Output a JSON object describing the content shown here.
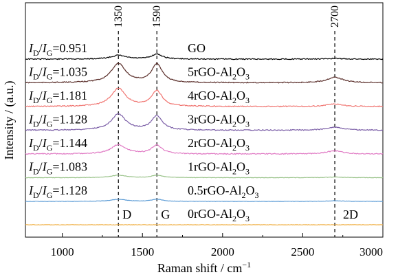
{
  "chart_data": {
    "type": "line",
    "xlabel_main": "Raman shift / cm",
    "xlabel_sup": "−1",
    "ylabel": "Intensity / (a.u.)",
    "xlim": [
      770,
      3000
    ],
    "xticks": [
      {
        "v": 1000,
        "label": "1000"
      },
      {
        "v": 1500,
        "label": "1500"
      },
      {
        "v": 2000,
        "label": "2000"
      },
      {
        "v": 2500,
        "label": "2500"
      },
      {
        "v": 3000,
        "label": "3000"
      }
    ],
    "ref_lines": [
      {
        "x": 1350,
        "top_label": "1350",
        "bottom_label": "D"
      },
      {
        "x": 1590,
        "top_label": "1590",
        "bottom_label": "G"
      },
      {
        "x": 2700,
        "top_label": "2700",
        "bottom_label": "2D"
      }
    ],
    "series": [
      {
        "name": "GO",
        "color": "#000000",
        "ratio": "0.951",
        "d": 0.12,
        "g": 0.16,
        "d2": 0.02,
        "base": 0
      },
      {
        "name": "5rGO-Al2O3",
        "display": "5rGO-Al",
        "color": "#5a2e2a",
        "ratio": "1.035",
        "d": 0.62,
        "g": 0.6,
        "d2": 0.18,
        "base": 1
      },
      {
        "name": "4rGO-Al2O3",
        "display": "4rGO-Al",
        "color": "#f07470",
        "ratio": "1.181",
        "d": 0.58,
        "g": 0.5,
        "d2": 0.08,
        "base": 2
      },
      {
        "name": "3rGO-Al2O3",
        "display": "3rGO-Al",
        "color": "#7b5ea7",
        "ratio": "1.128",
        "d": 0.52,
        "g": 0.46,
        "d2": 0.1,
        "base": 3
      },
      {
        "name": "2rGO-Al2O3",
        "display": "2rGO-Al",
        "color": "#e07ac4",
        "ratio": "1.144",
        "d": 0.3,
        "g": 0.28,
        "d2": 0.1,
        "base": 4
      },
      {
        "name": "1rGO-Al2O3",
        "display": "1rGO-Al",
        "color": "#9ac38a",
        "ratio": "1.083",
        "d": 0.08,
        "g": 0.08,
        "d2": 0.02,
        "base": 5
      },
      {
        "name": "0.5rGO-Al2O3",
        "display": "0.5rGO-Al",
        "color": "#5b9bd5",
        "ratio": "1.128",
        "d": 0.07,
        "g": 0.07,
        "d2": 0.02,
        "base": 6
      },
      {
        "name": "0rGO-Al2O3",
        "display": "0rGO-Al",
        "color": "#f0b24a",
        "ratio": "",
        "d": 0,
        "g": 0,
        "d2": 0,
        "base": 7
      }
    ]
  }
}
